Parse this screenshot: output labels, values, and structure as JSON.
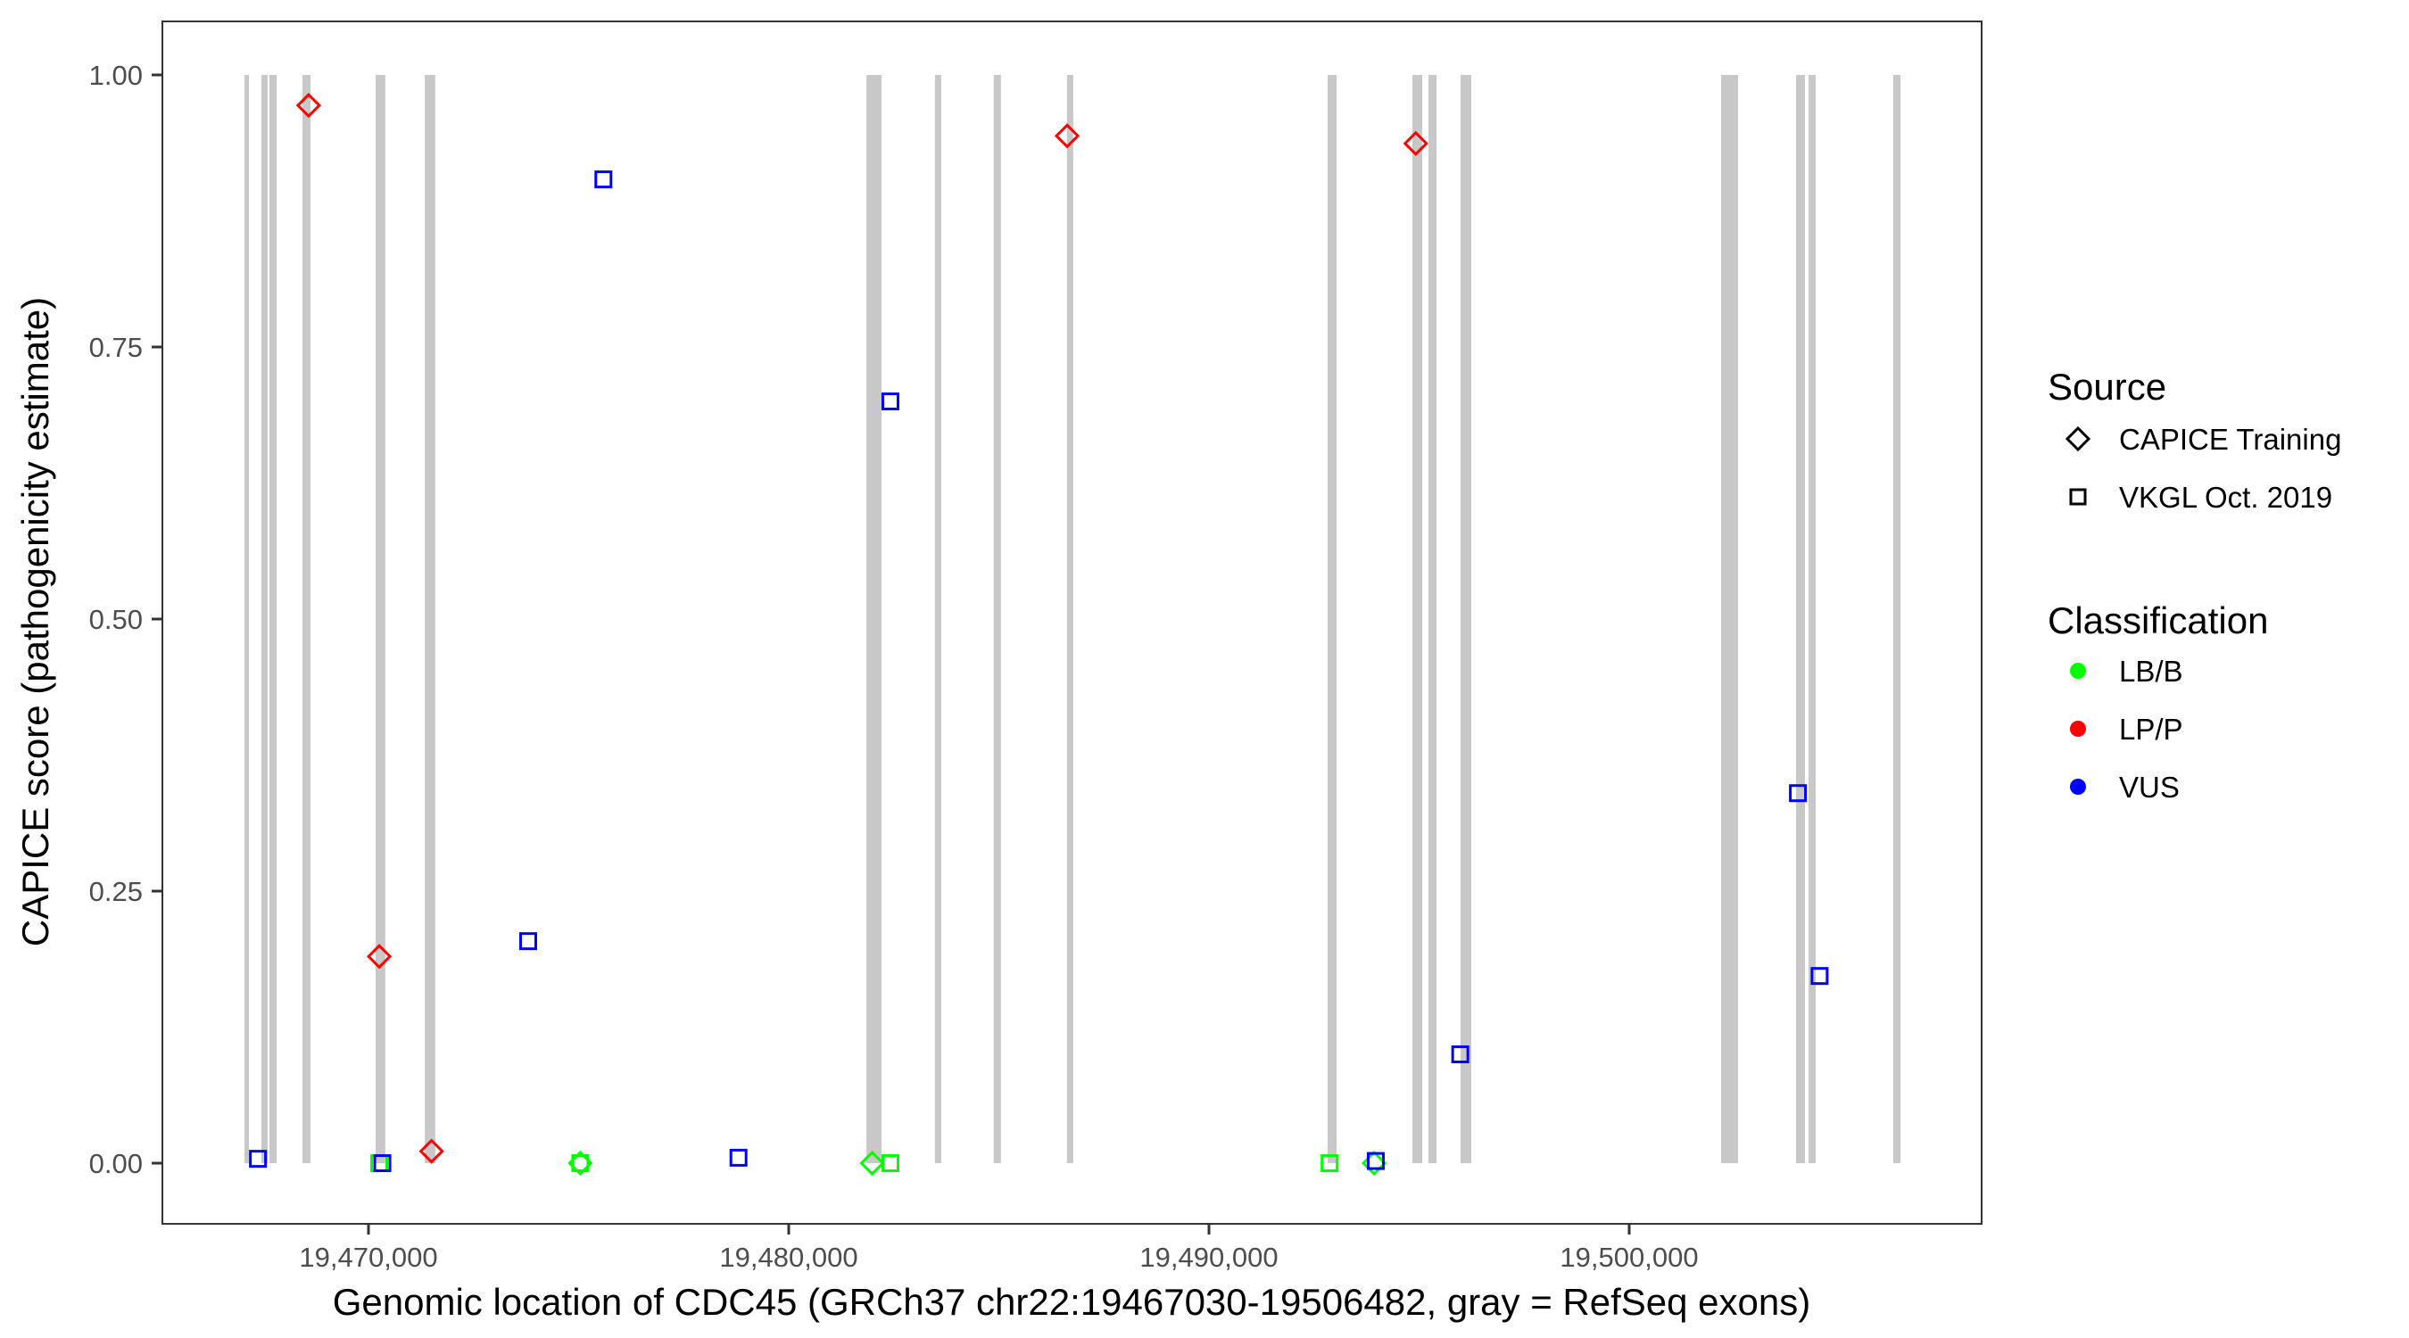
{
  "chart_data": {
    "type": "scatter",
    "title": "",
    "xlabel": "Genomic location of CDC45 (GRCh37 chr22:19467030-19506482, gray = RefSeq exons)",
    "ylabel": "CAPICE score (pathogenicity estimate)",
    "xlim": [
      19465500,
      19508500
    ],
    "ylim": [
      -0.056,
      1.05
    ],
    "x_ticks": [
      19470000,
      19480000,
      19490000,
      19500000
    ],
    "x_tick_labels": [
      "19,470,000",
      "19,480,000",
      "19,490,000",
      "19,500,000"
    ],
    "y_ticks": [
      0,
      0.25,
      0.5,
      0.75,
      1.0
    ],
    "y_tick_labels": [
      "0.00",
      "0.25",
      "0.50",
      "0.75",
      "1.00"
    ],
    "grid": false,
    "exons": [
      [
        19467049,
        19467155
      ],
      [
        19467452,
        19467600
      ],
      [
        19467643,
        19467813
      ],
      [
        19468430,
        19468620
      ],
      [
        19470170,
        19470400
      ],
      [
        19471340,
        19471590
      ],
      [
        19481850,
        19482210
      ],
      [
        19483480,
        19483630
      ],
      [
        19484880,
        19485050
      ],
      [
        19486620,
        19486770
      ],
      [
        19492824,
        19493036
      ],
      [
        19494841,
        19495074
      ],
      [
        19495223,
        19495414
      ],
      [
        19495987,
        19496242
      ],
      [
        19502187,
        19502590
      ],
      [
        19503970,
        19504183
      ],
      [
        19504268,
        19504437
      ],
      [
        19506285,
        19506454
      ]
    ],
    "exon_color": "#c8c8c8",
    "points": [
      {
        "x": 19467370,
        "y": 0.004,
        "source": "VKGL Oct. 2019",
        "class": "VUS"
      },
      {
        "x": 19468575,
        "y": 0.972,
        "source": "CAPICE Training",
        "class": "LP/P"
      },
      {
        "x": 19470256,
        "y": 0.19,
        "source": "CAPICE Training",
        "class": "LP/P"
      },
      {
        "x": 19470256,
        "y": 0.0,
        "source": "VKGL Oct. 2019",
        "class": "LB/B"
      },
      {
        "x": 19470330,
        "y": 0.0,
        "source": "VKGL Oct. 2019",
        "class": "VUS"
      },
      {
        "x": 19471500,
        "y": 0.011,
        "source": "CAPICE Training",
        "class": "LP/P"
      },
      {
        "x": 19473800,
        "y": 0.204,
        "source": "VKGL Oct. 2019",
        "class": "VUS"
      },
      {
        "x": 19475040,
        "y": 0.0,
        "source": "CAPICE Training",
        "class": "LB/B"
      },
      {
        "x": 19475040,
        "y": 0.0,
        "source": "VKGL Oct. 2019",
        "class": "LB/B"
      },
      {
        "x": 19475590,
        "y": 0.904,
        "source": "VKGL Oct. 2019",
        "class": "VUS"
      },
      {
        "x": 19478805,
        "y": 0.005,
        "source": "VKGL Oct. 2019",
        "class": "VUS"
      },
      {
        "x": 19481985,
        "y": 0.0,
        "source": "CAPICE Training",
        "class": "LB/B"
      },
      {
        "x": 19482420,
        "y": 0.0,
        "source": "VKGL Oct. 2019",
        "class": "LB/B"
      },
      {
        "x": 19482420,
        "y": 0.7,
        "source": "VKGL Oct. 2019",
        "class": "VUS"
      },
      {
        "x": 19486625,
        "y": 0.944,
        "source": "CAPICE Training",
        "class": "LP/P"
      },
      {
        "x": 19492870,
        "y": 0.0,
        "source": "VKGL Oct. 2019",
        "class": "LB/B"
      },
      {
        "x": 19493930,
        "y": 0.0,
        "source": "CAPICE Training",
        "class": "LB/B"
      },
      {
        "x": 19493970,
        "y": 0.002,
        "source": "VKGL Oct. 2019",
        "class": "VUS"
      },
      {
        "x": 19494920,
        "y": 0.937,
        "source": "CAPICE Training",
        "class": "LP/P"
      },
      {
        "x": 19495980,
        "y": 0.1,
        "source": "VKGL Oct. 2019",
        "class": "VUS"
      },
      {
        "x": 19504015,
        "y": 0.34,
        "source": "VKGL Oct. 2019",
        "class": "VUS"
      },
      {
        "x": 19504530,
        "y": 0.172,
        "source": "VKGL Oct. 2019",
        "class": "VUS"
      }
    ],
    "legend": {
      "placement": "right",
      "source_title": "Source",
      "source_items": [
        {
          "label": "CAPICE Training",
          "shape": "diamond"
        },
        {
          "label": "VKGL Oct. 2019",
          "shape": "square"
        }
      ],
      "class_title": "Classification",
      "class_items": [
        {
          "label": "LB/B",
          "color": "#00ff00"
        },
        {
          "label": "LP/P",
          "color": "#ff0000"
        },
        {
          "label": "VUS",
          "color": "#0000ff"
        }
      ]
    }
  }
}
